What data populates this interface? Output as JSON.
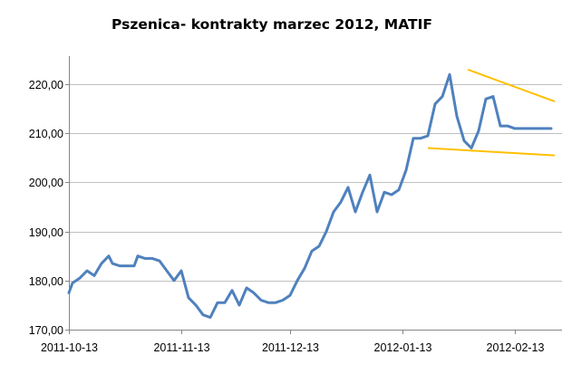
{
  "chart_data": {
    "type": "line",
    "title": "Pszenica- kontrakty marzec 2012, MATIF",
    "xlabel": "",
    "ylabel": "",
    "ylim": [
      170,
      225
    ],
    "y_ticks": [
      "220,00",
      "210,00",
      "200,00",
      "190,00",
      "180,00",
      "170,00"
    ],
    "y_tick_values": [
      220,
      210,
      200,
      190,
      180,
      170
    ],
    "x_ticks": [
      "2011-10-13",
      "2011-11-13",
      "2011-12-13",
      "2012-01-13",
      "2012-02-13"
    ],
    "x_tick_values": [
      "2011-10-13",
      "2011-11-13",
      "2011-12-13",
      "2012-01-13",
      "2012-02-13"
    ],
    "xlim": [
      "2011-10-13",
      "2012-02-24"
    ],
    "grid": "horizontal",
    "legend": "none",
    "colors": {
      "series": "#4F81BD",
      "trendlines": "#FFC000",
      "grid": "#BFBFBF"
    },
    "series": [
      {
        "x": [
          "2011-10-13",
          "2011-10-14",
          "2011-10-16",
          "2011-10-18",
          "2011-10-20",
          "2011-10-22",
          "2011-10-24",
          "2011-10-25",
          "2011-10-27",
          "2011-10-29",
          "2011-10-31",
          "2011-11-01",
          "2011-11-03",
          "2011-11-05",
          "2011-11-07",
          "2011-11-09",
          "2011-11-11",
          "2011-11-13",
          "2011-11-15",
          "2011-11-17",
          "2011-11-19",
          "2011-11-21",
          "2011-11-23",
          "2011-11-25",
          "2011-11-27",
          "2011-11-29",
          "2011-12-01",
          "2011-12-03",
          "2011-12-05",
          "2011-12-07",
          "2011-12-09",
          "2011-12-11",
          "2011-12-13",
          "2011-12-15",
          "2011-12-17",
          "2011-12-19",
          "2011-12-21",
          "2011-12-23",
          "2011-12-25",
          "2011-12-27",
          "2011-12-29",
          "2011-12-31",
          "2012-01-02",
          "2012-01-04",
          "2012-01-06",
          "2012-01-08",
          "2012-01-10",
          "2012-01-12",
          "2012-01-14",
          "2012-01-16",
          "2012-01-18",
          "2012-01-20",
          "2012-01-22",
          "2012-01-24",
          "2012-01-26",
          "2012-01-28",
          "2012-01-30",
          "2012-02-01",
          "2012-02-03",
          "2012-02-05",
          "2012-02-07",
          "2012-02-09",
          "2012-02-11",
          "2012-02-13",
          "2012-02-15",
          "2012-02-17",
          "2012-02-19",
          "2012-02-21",
          "2012-02-23"
        ],
        "values": [
          177.5,
          179.5,
          180.5,
          182.0,
          181.0,
          183.5,
          185.0,
          183.5,
          183.0,
          183.0,
          183.0,
          185.0,
          184.5,
          184.5,
          184.0,
          182.0,
          180.0,
          182.0,
          176.5,
          175.0,
          173.0,
          172.5,
          175.5,
          175.5,
          178.0,
          175.0,
          178.5,
          177.5,
          176.0,
          175.5,
          175.5,
          176.0,
          177.0,
          180.0,
          182.5,
          186.0,
          187.0,
          190.0,
          194.0,
          196.0,
          199.0,
          194.0,
          198.0,
          201.5,
          194.0,
          198.0,
          197.5,
          198.5,
          202.5,
          209.0,
          209.0,
          209.5,
          216.0,
          217.5,
          222.0,
          213.5,
          208.5,
          207.0,
          210.5,
          217.0,
          217.5,
          211.5,
          211.5,
          211.0,
          211.0,
          211.0,
          211.0,
          211.0,
          211.0
        ]
      }
    ],
    "trendlines": [
      {
        "x": [
          "2012-01-20",
          "2012-02-24"
        ],
        "values": [
          207.0,
          205.5
        ]
      },
      {
        "x": [
          "2012-01-31",
          "2012-02-24"
        ],
        "values": [
          223.0,
          216.5
        ]
      }
    ]
  }
}
